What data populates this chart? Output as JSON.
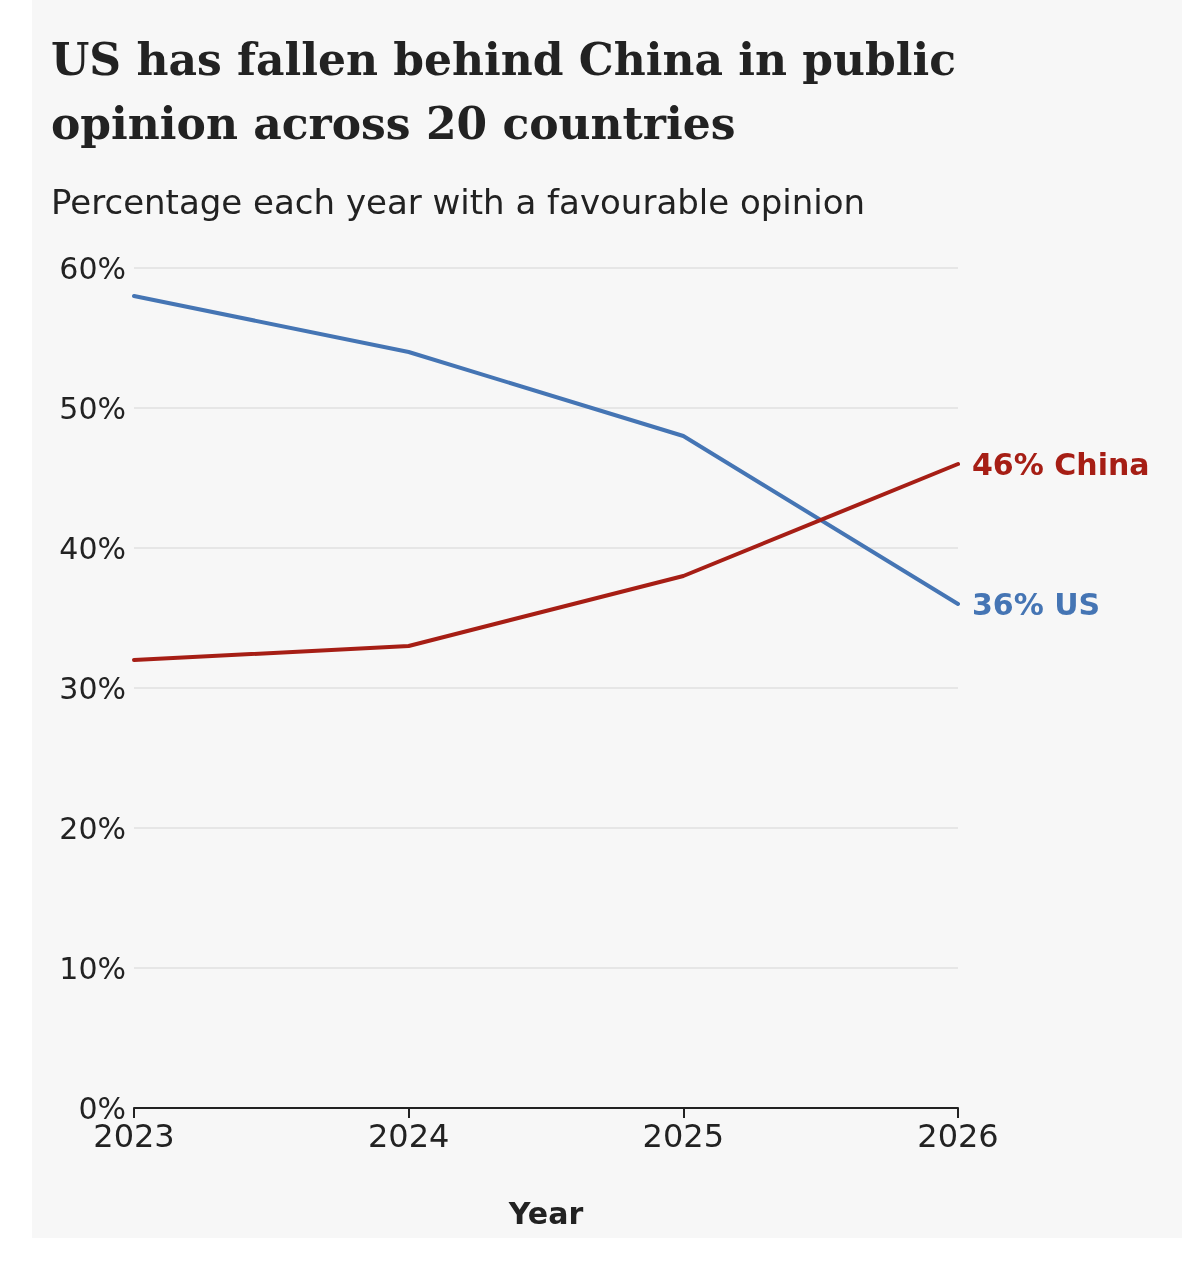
{
  "chart_data": {
    "type": "line",
    "title": "US has fallen behind China in public opinion across 20 countries",
    "subtitle": "Percentage each year with a favourable opinion",
    "xlabel": "Year",
    "categories": [
      "2023",
      "2024",
      "2025",
      "2026"
    ],
    "series": [
      {
        "name": "US",
        "color": "#4575b4",
        "values": [
          58,
          54,
          48,
          36
        ],
        "value_labels": [
          null,
          null,
          null,
          "36%"
        ]
      },
      {
        "name": "China",
        "color": "#a61e15",
        "values": [
          32,
          33,
          38,
          46
        ],
        "value_labels": [
          null,
          null,
          null,
          "46%"
        ]
      }
    ],
    "ylim": [
      0,
      60
    ],
    "yticks": [
      {
        "value": 0,
        "label": "0%"
      },
      {
        "value": 10,
        "label": "10%"
      },
      {
        "value": 20,
        "label": "20%"
      },
      {
        "value": 30,
        "label": "30%"
      },
      {
        "value": 40,
        "label": "40%"
      },
      {
        "value": 50,
        "label": "50%"
      },
      {
        "value": 60,
        "label": "60%"
      }
    ],
    "grid": "y",
    "legend": false
  }
}
